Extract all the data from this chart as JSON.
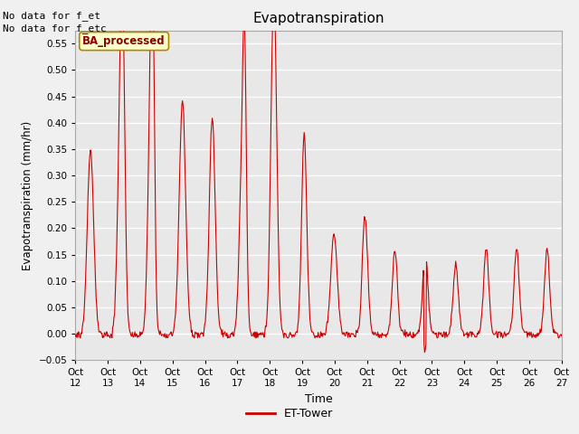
{
  "title": "Evapotranspiration",
  "xlabel": "Time",
  "ylabel": "Evapotranspiration (mm/hr)",
  "ylim": [
    -0.05,
    0.575
  ],
  "yticks": [
    -0.05,
    0.0,
    0.05,
    0.1,
    0.15,
    0.2,
    0.25,
    0.3,
    0.35,
    0.4,
    0.45,
    0.5,
    0.55
  ],
  "line_color": "#cc0000",
  "line_label": "ET-Tower",
  "legend_label": "BA_processed",
  "note1": "No data for f_et",
  "note2": "No data for f_etc",
  "plot_bg": "#e8e8e8",
  "fig_bg": "#f0f0f0",
  "xtick_labels": [
    "Oct 12",
    "Oct 13",
    "Oct 14",
    "Oct 15",
    "Oct 16",
    "Oct 17",
    "Oct 18",
    "Oct 19",
    "Oct 20",
    "Oct 21",
    "Oct 22",
    "Oct 23",
    "Oct 24",
    "Oct 25",
    "Oct 26",
    "Oct 27"
  ],
  "xtick_positions": [
    0,
    24,
    48,
    72,
    96,
    120,
    144,
    168,
    192,
    216,
    240,
    264,
    288,
    312,
    336,
    360
  ]
}
